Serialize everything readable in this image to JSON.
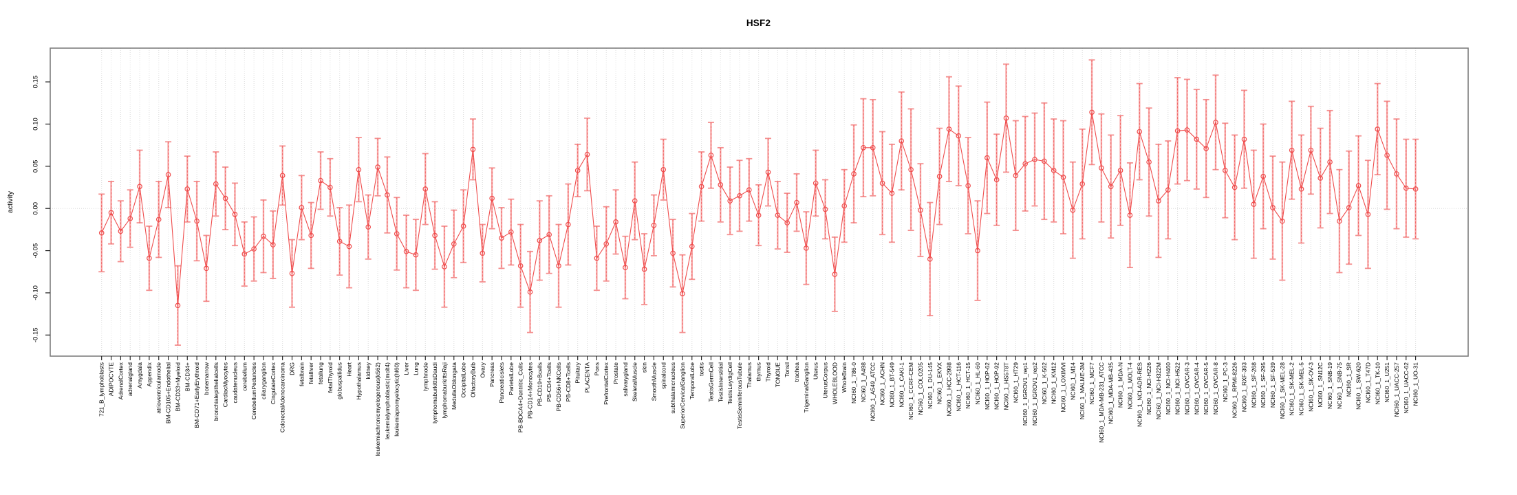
{
  "chart_data": {
    "type": "line",
    "title": "HSF2",
    "ylabel": "activity",
    "xlabel": "",
    "ylim": [
      -0.175,
      0.19
    ],
    "yticks": [
      -0.15,
      -0.1,
      -0.05,
      0.0,
      0.05,
      0.1,
      0.15
    ],
    "ytick_labels": [
      "-0.15",
      "-0.10",
      "-0.05",
      "0.00",
      "0.05",
      "0.10",
      "0.15"
    ],
    "grid": "vertical dotted gridline per category; horizontal dotted line at 0",
    "legend": "none",
    "marker": "open-circle",
    "series_color": "#ef4b4b",
    "errorbar_color": "#f7a8a8",
    "categories": [
      "721_B_lymphoblasts",
      "ADIPOCYTE",
      "AdrenalCortex",
      "adrenalgland",
      "Amygdala",
      "Appendix",
      "atrioventricularnode",
      "BM-CD105+Endothelial",
      "BM-CD33+Myeloid",
      "BM-CD34+",
      "BM-CD71+EarlyErythroid",
      "bonemarrow",
      "bronchialepithelialcells",
      "CardiacMyocytes",
      "caudatenucleus",
      "cerebellum",
      "CerebellumPeduncles",
      "ciliaryganglion",
      "CingulateCortex",
      "ColorectalAdenocarcinoma",
      "DRG",
      "fetalbrain",
      "fetalliver",
      "fetallung",
      "fetalThyroid",
      "globuspallidus",
      "Heart",
      "Hypothalamus",
      "kidney",
      "leukemiachronicmyelogenous(k562)",
      "leukemialymphoblastic(molt4)",
      "leukemiapromyelocytic(hl60)",
      "Liver",
      "Lung",
      "lymphnode",
      "lymphomaburkittsDaudi",
      "lymphomaburkittsRaji",
      "MedullaOblongata",
      "OccipitalLobe",
      "OlfactoryBulb",
      "Ovary",
      "Pancreas",
      "Pancreaticislets",
      "ParietalLobe",
      "PB-BDCA4+Dentritic_Cells",
      "PB-CD14+Monocytes",
      "PB-CD19+Bcells",
      "PB-CD4+Tcells",
      "PB-CD56+NKCells",
      "PB-CD8+Tcells",
      "Pituitary",
      "PLACENTA",
      "Pons",
      "PrefrontalCortex",
      "Prostate",
      "salivarygland",
      "SkeletalMuscle",
      "skin",
      "SmoothMuscle",
      "spinalcord",
      "subthalamicnucleus",
      "SuperiorCervicalGanglion",
      "TemporalLobe",
      "testis",
      "TestisGermCell",
      "TestisInterstitial",
      "TestisLeydigCell",
      "TestisSeminiferousTubule",
      "Thalamus",
      "thymus",
      "Thyroid",
      "TONGUE",
      "Tonsil",
      "trachea",
      "TrigeminalGanglion",
      "Uterus",
      "UterusCorpus",
      "WHOLEBLOOD",
      "WholeBrain",
      "NCI60_1_786-0",
      "NCI60_1_A498",
      "NCI60_1_A549_ATCC",
      "NCI60_1_ACHN",
      "NCI60_1_BT-549",
      "NCI60_1_CAKI-1",
      "NCI60_1_CCRF-CEM",
      "NCI60_1_COLO205",
      "NCI60_1_DU-145",
      "NCI60_1_EKVX",
      "NCI60_1_HCC-2998",
      "NCI60_1_HCT-116",
      "NCI60_1_HCT-15",
      "NCI60_1_HL-60",
      "NCI60_1_HOP-62",
      "NCI60_1_HOP-92",
      "NCI60_1_HS578T",
      "NCI60_1_HT29",
      "NCI60_1_IGROV1_rep1",
      "NCI60_1_IGROV1_rep2",
      "NCI60_1_K-562",
      "NCI60_1_KM12",
      "NCI60_1_LOXIMVI",
      "NCI60_1_M14",
      "NCI60_1_MALME-3M",
      "NCI60_1_MCF7",
      "NCI60_1_MDA-MB-231_ATCC",
      "NCI60_1_MDA-MB-435",
      "NCI60_1_MDA-N",
      "NCI60_1_MOLT-4",
      "NCI60_1_NCI-ADR-RES",
      "NCI60_1_NCI-H226",
      "NCI60_1_NCI-H322M",
      "NCI60_1_NCI-H460",
      "NCI60_1_NCI-H522",
      "NCI60_1_OVCAR-3",
      "NCI60_1_OVCAR-4",
      "NCI60_1_OVCAR-5",
      "NCI60_1_OVCAR-8",
      "NCI60_1_PC-3",
      "NCI60_1_RPMI-8226",
      "NCI60_1_RXF-393",
      "NCI60_1_SF-268",
      "NCI60_1_SF-295",
      "NCI60_1_SF-539",
      "NCI60_1_SK-MEL-28",
      "NCI60_1_SK-MEL-2",
      "NCI60_1_SK-MEL-5",
      "NCI60_1_SK-OV-3",
      "NCI60_1_SN12C",
      "NCI60_1_SNB-19",
      "NCI60_1_SNB-75",
      "NCI60_1_SR",
      "NCI60_1_SW-620",
      "NCI60_1_T47D",
      "NCI60_1_TK-10",
      "NCI60_1_U251",
      "NCI60_1_UACC-257",
      "NCI60_1_UACC-62",
      "NCI60_1_UO-31"
    ],
    "values": [
      -0.029,
      -0.005,
      -0.027,
      -0.012,
      0.026,
      -0.059,
      -0.013,
      0.04,
      -0.115,
      0.023,
      -0.015,
      -0.071,
      0.029,
      0.012,
      -0.007,
      -0.054,
      -0.048,
      -0.033,
      -0.043,
      0.039,
      -0.077,
      0.001,
      -0.032,
      0.033,
      0.025,
      -0.039,
      -0.045,
      0.046,
      -0.022,
      0.049,
      0.016,
      -0.03,
      -0.051,
      -0.055,
      0.023,
      -0.032,
      -0.069,
      -0.042,
      -0.021,
      0.07,
      -0.053,
      0.012,
      -0.035,
      -0.028,
      -0.068,
      -0.099,
      -0.038,
      -0.031,
      -0.068,
      -0.019,
      0.045,
      0.064,
      -0.059,
      -0.042,
      -0.016,
      -0.07,
      0.009,
      -0.072,
      -0.02,
      0.046,
      -0.053,
      -0.101,
      -0.045,
      0.026,
      0.063,
      0.028,
      0.009,
      0.015,
      0.022,
      -0.008,
      0.043,
      -0.008,
      -0.017,
      0.007,
      -0.047,
      0.03,
      -0.001,
      -0.078,
      0.003,
      0.041,
      0.072,
      0.072,
      0.03,
      0.018,
      0.08,
      0.046,
      -0.002,
      -0.06,
      0.038,
      0.094,
      0.086,
      0.027,
      -0.05,
      0.06,
      0.034,
      0.107,
      0.039,
      0.053,
      0.058,
      0.056,
      0.045,
      0.037,
      -0.002,
      0.029,
      0.114,
      0.048,
      0.026,
      0.045,
      -0.008,
      0.091,
      0.055,
      0.009,
      0.022,
      0.092,
      0.093,
      0.082,
      0.071,
      0.102,
      0.045,
      0.025,
      0.082,
      0.005,
      0.038,
      0.001,
      -0.015,
      0.069,
      0.023,
      0.069,
      0.036,
      0.055,
      -0.015,
      0.001,
      0.027,
      -0.007,
      0.094,
      0.063,
      0.041,
      0.024,
      0.023
    ],
    "errors": [
      0.046,
      0.037,
      0.036,
      0.034,
      0.043,
      0.038,
      0.045,
      0.039,
      0.047,
      0.039,
      0.047,
      0.039,
      0.038,
      0.037,
      0.037,
      0.038,
      0.038,
      0.043,
      0.04,
      0.035,
      0.04,
      0.038,
      0.039,
      0.034,
      0.034,
      0.04,
      0.049,
      0.038,
      0.038,
      0.034,
      0.045,
      0.043,
      0.043,
      0.042,
      0.042,
      0.04,
      0.048,
      0.04,
      0.043,
      0.036,
      0.034,
      0.036,
      0.036,
      0.039,
      0.049,
      0.048,
      0.047,
      0.046,
      0.049,
      0.048,
      0.031,
      0.043,
      0.038,
      0.044,
      0.038,
      0.037,
      0.046,
      0.042,
      0.036,
      0.036,
      0.04,
      0.046,
      0.039,
      0.041,
      0.039,
      0.044,
      0.04,
      0.042,
      0.037,
      0.036,
      0.04,
      0.04,
      0.035,
      0.034,
      0.043,
      0.039,
      0.035,
      0.044,
      0.043,
      0.058,
      0.058,
      0.057,
      0.061,
      0.058,
      0.058,
      0.072,
      0.055,
      0.067,
      0.057,
      0.062,
      0.059,
      0.057,
      0.059,
      0.066,
      0.054,
      0.064,
      0.065,
      0.056,
      0.055,
      0.069,
      0.061,
      0.067,
      0.057,
      0.065,
      0.062,
      0.064,
      0.061,
      0.065,
      0.062,
      0.057,
      0.064,
      0.067,
      0.058,
      0.063,
      0.06,
      0.059,
      0.058,
      0.056,
      0.056,
      0.062,
      0.058,
      0.064,
      0.062,
      0.061,
      0.07,
      0.058,
      0.064,
      0.052,
      0.059,
      0.061,
      0.061,
      0.067,
      0.059,
      0.064,
      0.054,
      0.064,
      0.065,
      0.058,
      0.059
    ]
  }
}
